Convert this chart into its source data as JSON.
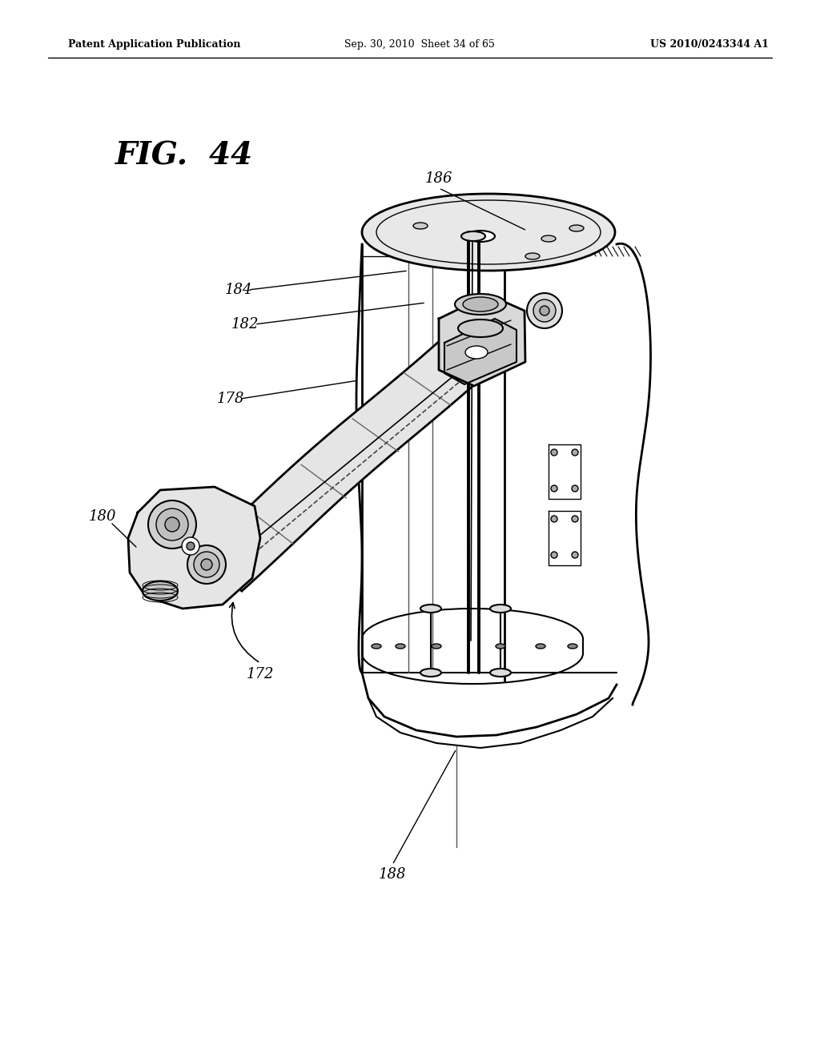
{
  "header_left": "Patent Application Publication",
  "header_mid": "Sep. 30, 2010  Sheet 34 of 65",
  "header_right": "US 2010/0243344 A1",
  "fig_label": "FIG. 44",
  "background": "#ffffff",
  "line_color": "#000000"
}
